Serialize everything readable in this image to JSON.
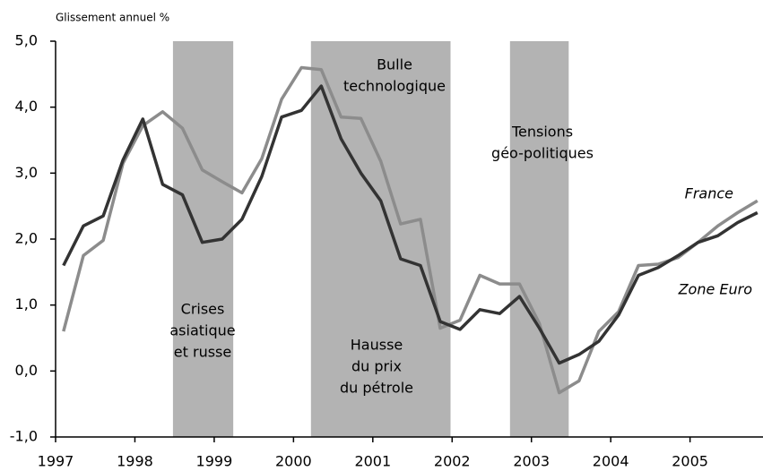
{
  "chart_data": {
    "type": "line",
    "y_label": "Glissement annuel  %",
    "xlim": [
      1997,
      2005.92
    ],
    "ylim": [
      -1,
      5
    ],
    "xticks": [
      1997,
      1998,
      1999,
      2000,
      2001,
      2002,
      2003,
      2004,
      2005
    ],
    "yticks": [
      {
        "value": -1,
        "label": "-1,0"
      },
      {
        "value": 0,
        "label": "0,0"
      },
      {
        "value": 1,
        "label": "1,0"
      },
      {
        "value": 2,
        "label": "2,0"
      },
      {
        "value": 3,
        "label": "3,0"
      },
      {
        "value": 4,
        "label": "4,0"
      },
      {
        "value": 5,
        "label": "5,0"
      }
    ],
    "bands": [
      {
        "start": 1998.48,
        "end": 1999.24,
        "color": "#b3b3b3",
        "label": [
          "Crises",
          "asiatique",
          "et russe"
        ]
      },
      {
        "start": 2000.22,
        "end": 2001.98,
        "color": "#b3b3b3",
        "label": [
          "Hausse",
          "du prix",
          "du pétrole"
        ]
      },
      {
        "start": 2002.73,
        "end": 2003.47,
        "color": "#b3b3b3",
        "label": [
          "Tensions",
          "géo-politiques"
        ]
      }
    ],
    "annotations": [
      [
        "Bulle",
        "technologique"
      ]
    ],
    "x": [
      1997.1,
      1997.35,
      1997.6,
      1997.85,
      1998.1,
      1998.35,
      1998.6,
      1998.85,
      1999.1,
      1999.35,
      1999.6,
      1999.85,
      2000.1,
      2000.35,
      2000.6,
      2000.85,
      2001.1,
      2001.35,
      2001.6,
      2001.85,
      2002.1,
      2002.35,
      2002.6,
      2002.85,
      2003.1,
      2003.35,
      2003.6,
      2003.85,
      2004.1,
      2004.35,
      2004.6,
      2004.85,
      2005.1,
      2005.35,
      2005.6,
      2005.85
    ],
    "series": [
      {
        "name": "Zone Euro",
        "color": "#333333",
        "values": [
          1.6,
          2.2,
          2.35,
          3.2,
          3.82,
          2.83,
          2.67,
          1.95,
          2.0,
          2.3,
          2.95,
          3.85,
          3.95,
          4.32,
          3.52,
          3.0,
          2.58,
          1.7,
          1.6,
          0.75,
          0.63,
          0.93,
          0.87,
          1.13,
          0.65,
          0.12,
          0.25,
          0.45,
          0.85,
          1.45,
          1.57,
          1.75,
          1.95,
          2.05,
          2.25,
          2.4
        ]
      },
      {
        "name": "France",
        "color": "#8c8c8c",
        "values": [
          0.6,
          1.75,
          1.98,
          3.15,
          3.72,
          3.93,
          3.68,
          3.05,
          2.87,
          2.7,
          3.22,
          4.12,
          4.6,
          4.57,
          3.85,
          3.83,
          3.18,
          2.23,
          2.3,
          0.65,
          0.77,
          1.45,
          1.32,
          1.32,
          0.72,
          -0.33,
          -0.15,
          0.6,
          0.9,
          1.6,
          1.62,
          1.72,
          1.95,
          2.2,
          2.4,
          2.58
        ]
      }
    ]
  }
}
